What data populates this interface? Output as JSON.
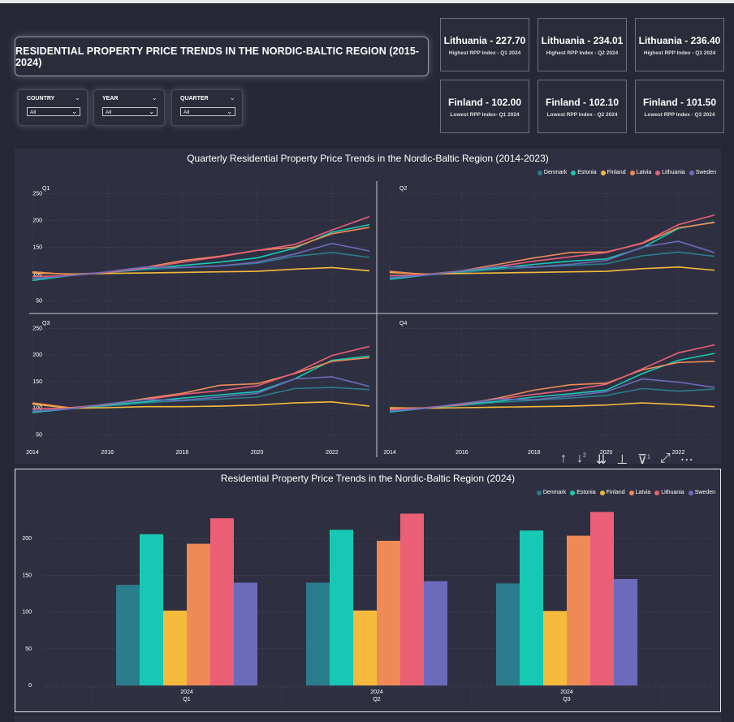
{
  "header": {
    "title": "RESIDENTIAL PROPERTY PRICE TRENDS IN THE NORDIC-BALTIC REGION (2015-2024)"
  },
  "slicers": [
    {
      "label": "COUNTRY",
      "value": "All"
    },
    {
      "label": "YEAR",
      "value": "All"
    },
    {
      "label": "QUARTER",
      "value": "All"
    }
  ],
  "cards": [
    {
      "value": "Lithuania - 227.70",
      "sub": "Highest RPP Index - Q1 2024"
    },
    {
      "value": "Lithuania - 234.01",
      "sub": "Highest RPP Index - Q2 2024"
    },
    {
      "value": "Lithuania - 236.40",
      "sub": "Highest RPP Index - Q3 2024"
    },
    {
      "value": "Finland - 102.00",
      "sub": "Lowest RPP Index- Q1 2024"
    },
    {
      "value": "Finland - 102.10",
      "sub": "Lowest RPP Index - Q2 2024"
    },
    {
      "value": "Finland - 101.50",
      "sub": "Lowest RPP Index - Q3 2024"
    }
  ],
  "colors": {
    "Denmark": "#2b7c8c",
    "Estonia": "#17c9b4",
    "Finland": "#f5b93c",
    "Latvia": "#ef8a57",
    "Lithuania": "#ea5f76",
    "Sweden": "#6c6bbb"
  },
  "legend": [
    "Denmark",
    "Estonia",
    "Finland",
    "Latvia",
    "Lithuania",
    "Sweden"
  ],
  "toolbar": {
    "superscript": "2",
    "filter_count": "1"
  },
  "chart_data": [
    {
      "type": "line",
      "title": "Quarterly Residential Property Price Trends in the Nordic-Baltic Region (2014-2023)",
      "x": [
        2014,
        2015,
        2016,
        2017,
        2018,
        2019,
        2020,
        2021,
        2022,
        2023
      ],
      "xticks": [
        "2014",
        "2016",
        "2018",
        "2020",
        "2022"
      ],
      "ylim": [
        40,
        255
      ],
      "yticks": [
        50,
        100,
        150,
        200,
        250
      ],
      "panels": [
        {
          "name": "Q1",
          "series": [
            {
              "name": "Denmark",
              "values": [
                92,
                97,
                103,
                108,
                112,
                115,
                120,
                133,
                140,
                131
              ]
            },
            {
              "name": "Estonia",
              "values": [
                88,
                97,
                103,
                110,
                116,
                122,
                130,
                148,
                178,
                192
              ]
            },
            {
              "name": "Finland",
              "values": [
                102,
                100,
                101,
                102,
                103,
                104,
                105,
                109,
                112,
                106
              ]
            },
            {
              "name": "Latvia",
              "values": [
                104,
                99,
                103,
                112,
                125,
                133,
                144,
                150,
                175,
                187
              ]
            },
            {
              "name": "Lithuania",
              "values": [
                95,
                97,
                103,
                111,
                122,
                132,
                144,
                155,
                182,
                207
              ]
            },
            {
              "name": "Sweden",
              "values": [
                91,
                97,
                104,
                113,
                112,
                115,
                122,
                137,
                157,
                143
              ]
            }
          ]
        },
        {
          "name": "Q2",
          "series": [
            {
              "name": "Denmark",
              "values": [
                94,
                98,
                103,
                109,
                113,
                116,
                119,
                134,
                141,
                133
              ]
            },
            {
              "name": "Estonia",
              "values": [
                90,
                98,
                105,
                111,
                118,
                124,
                128,
                149,
                185,
                197
              ]
            },
            {
              "name": "Finland",
              "values": [
                103,
                100,
                101,
                102,
                103,
                104,
                105,
                110,
                113,
                107
              ]
            },
            {
              "name": "Latvia",
              "values": [
                105,
                99,
                106,
                118,
                130,
                140,
                141,
                157,
                186,
                196
              ]
            },
            {
              "name": "Lithuania",
              "values": [
                97,
                99,
                106,
                114,
                124,
                132,
                140,
                158,
                192,
                210
              ]
            },
            {
              "name": "Sweden",
              "values": [
                93,
                98,
                106,
                114,
                113,
                118,
                125,
                150,
                161,
                140
              ]
            }
          ]
        },
        {
          "name": "Q3",
          "series": [
            {
              "name": "Denmark",
              "values": [
                95,
                99,
                104,
                110,
                114,
                117,
                121,
                137,
                139,
                135
              ]
            },
            {
              "name": "Estonia",
              "values": [
                92,
                99,
                106,
                112,
                119,
                125,
                131,
                155,
                190,
                198
              ]
            },
            {
              "name": "Finland",
              "values": [
                108,
                100,
                101,
                103,
                103,
                104,
                106,
                110,
                112,
                104
              ]
            },
            {
              "name": "Latvia",
              "values": [
                110,
                101,
                107,
                118,
                128,
                143,
                146,
                165,
                188,
                195
              ]
            },
            {
              "name": "Lithuania",
              "values": [
                99,
                100,
                108,
                116,
                126,
                133,
                142,
                166,
                199,
                216
              ]
            },
            {
              "name": "Sweden",
              "values": [
                94,
                99,
                108,
                116,
                115,
                121,
                128,
                155,
                159,
                141
              ]
            }
          ]
        },
        {
          "name": "Q4",
          "series": [
            {
              "name": "Denmark",
              "values": [
                96,
                100,
                105,
                111,
                115,
                119,
                124,
                137,
                132,
                136
              ]
            },
            {
              "name": "Estonia",
              "values": [
                93,
                100,
                107,
                113,
                121,
                127,
                134,
                165,
                190,
                203
              ]
            },
            {
              "name": "Finland",
              "values": [
                101,
                100,
                101,
                102,
                103,
                104,
                106,
                110,
                107,
                103
              ]
            },
            {
              "name": "Latvia",
              "values": [
                99,
                101,
                107,
                119,
                134,
                144,
                147,
                172,
                186,
                188
              ]
            },
            {
              "name": "Lithuania",
              "values": [
                97,
                101,
                108,
                117,
                126,
                134,
                145,
                174,
                204,
                219
              ]
            },
            {
              "name": "Sweden",
              "values": [
                95,
                100,
                109,
                117,
                116,
                123,
                131,
                155,
                149,
                139
              ]
            }
          ]
        }
      ]
    },
    {
      "type": "bar",
      "title": "Residential Property Price Trends in the Nordic-Baltic Region (2024)",
      "categories": [
        {
          "year": "2024",
          "quarter": "Q1"
        },
        {
          "year": "2024",
          "quarter": "Q2"
        },
        {
          "year": "2024",
          "quarter": "Q3"
        }
      ],
      "ylim": [
        0,
        250
      ],
      "yticks": [
        0,
        50,
        100,
        150,
        200
      ],
      "series": [
        {
          "name": "Denmark",
          "values": [
            137,
            140,
            139
          ]
        },
        {
          "name": "Estonia",
          "values": [
            206,
            212,
            211
          ]
        },
        {
          "name": "Finland",
          "values": [
            102.0,
            102.1,
            101.5
          ]
        },
        {
          "name": "Latvia",
          "values": [
            193,
            197,
            204
          ]
        },
        {
          "name": "Lithuania",
          "values": [
            227.7,
            234.01,
            236.4
          ]
        },
        {
          "name": "Sweden",
          "values": [
            140,
            142,
            145
          ]
        }
      ]
    }
  ]
}
